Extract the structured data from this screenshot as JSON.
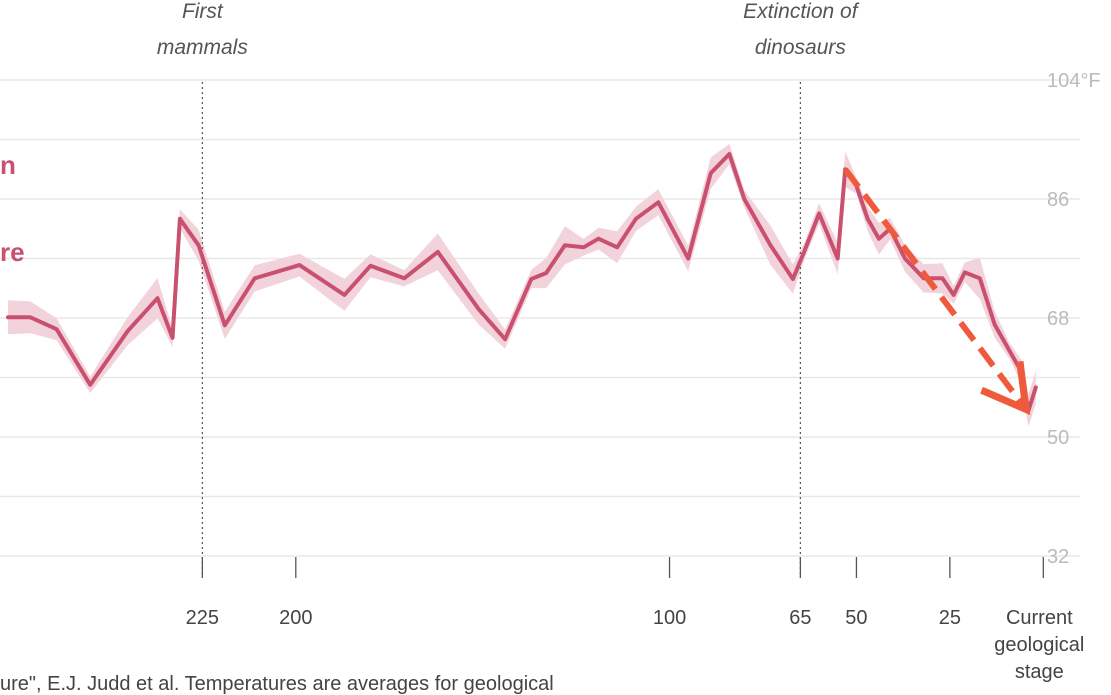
{
  "chart_data": {
    "type": "line",
    "x_axis_unit": "million years ago",
    "x_axis_reversed": true,
    "xlim": [
      277,
      -5
    ],
    "ylim": [
      32,
      104
    ],
    "y_ticks": [
      {
        "value": 104,
        "label": "104°F"
      },
      {
        "value": 86,
        "label": "86"
      },
      {
        "value": 68,
        "label": "68"
      },
      {
        "value": 50,
        "label": "50"
      },
      {
        "value": 32,
        "label": "32"
      }
    ],
    "x_ticks": [
      {
        "value": 225,
        "label": "225"
      },
      {
        "value": 200,
        "label": "200"
      },
      {
        "value": 100,
        "label": "100"
      },
      {
        "value": 65,
        "label": "65"
      },
      {
        "value": 50,
        "label": "50"
      },
      {
        "value": 25,
        "label": "25"
      },
      {
        "value": 0,
        "label": [
          "Current",
          "geological",
          "stage"
        ]
      }
    ],
    "legend_fragments": [
      "n",
      "re"
    ],
    "annotations": [
      {
        "x": 225,
        "lines": [
          "First",
          "mammals"
        ]
      },
      {
        "x": 65,
        "lines": [
          "Extinction of",
          "dinosaurs"
        ]
      }
    ],
    "series": [
      {
        "color": "#c9506e",
        "band_color": "#f3d3db",
        "points": [
          [
            277,
            68.1
          ],
          [
            271,
            68.1
          ],
          [
            264,
            66.3
          ],
          [
            255,
            57.9
          ],
          [
            245,
            66.0
          ],
          [
            237,
            71.0
          ],
          [
            233,
            65.0
          ],
          [
            231,
            83.0
          ],
          [
            226,
            79.0
          ],
          [
            219,
            66.9
          ],
          [
            211,
            74.0
          ],
          [
            199,
            76.0
          ],
          [
            187,
            71.5
          ],
          [
            180,
            75.9
          ],
          [
            171,
            74.0
          ],
          [
            162,
            78.0
          ],
          [
            151,
            69.3
          ],
          [
            144,
            64.8
          ],
          [
            137,
            73.9
          ],
          [
            133,
            74.8
          ],
          [
            128,
            79.0
          ],
          [
            123,
            78.7
          ],
          [
            119,
            80.0
          ],
          [
            114,
            78.7
          ],
          [
            109,
            83.0
          ],
          [
            103,
            85.5
          ],
          [
            95,
            77.0
          ],
          [
            89,
            89.9
          ],
          [
            84,
            92.8
          ],
          [
            80,
            86.0
          ],
          [
            73,
            79.0
          ],
          [
            67,
            73.9
          ],
          [
            64,
            78.0
          ],
          [
            60,
            83.8
          ],
          [
            55,
            77.0
          ],
          [
            53,
            90.5
          ],
          [
            50,
            88.0
          ],
          [
            47,
            83.0
          ],
          [
            44,
            80.0
          ],
          [
            41,
            81.5
          ],
          [
            37,
            77.0
          ],
          [
            32,
            74.0
          ],
          [
            27,
            74.0
          ],
          [
            24,
            71.5
          ],
          [
            21,
            74.9
          ],
          [
            17,
            74.0
          ],
          [
            13,
            67.0
          ],
          [
            9,
            63.0
          ],
          [
            6,
            60.0
          ],
          [
            4,
            54.0
          ],
          [
            2,
            57.5
          ]
        ]
      }
    ],
    "trend_arrow": {
      "from": [
        53,
        90.5
      ],
      "to": [
        4,
        54.0
      ],
      "color": "#f05a3c",
      "style": "dashed"
    }
  },
  "source": "ure\", E.J. Judd et al. Temperatures are averages for geological"
}
